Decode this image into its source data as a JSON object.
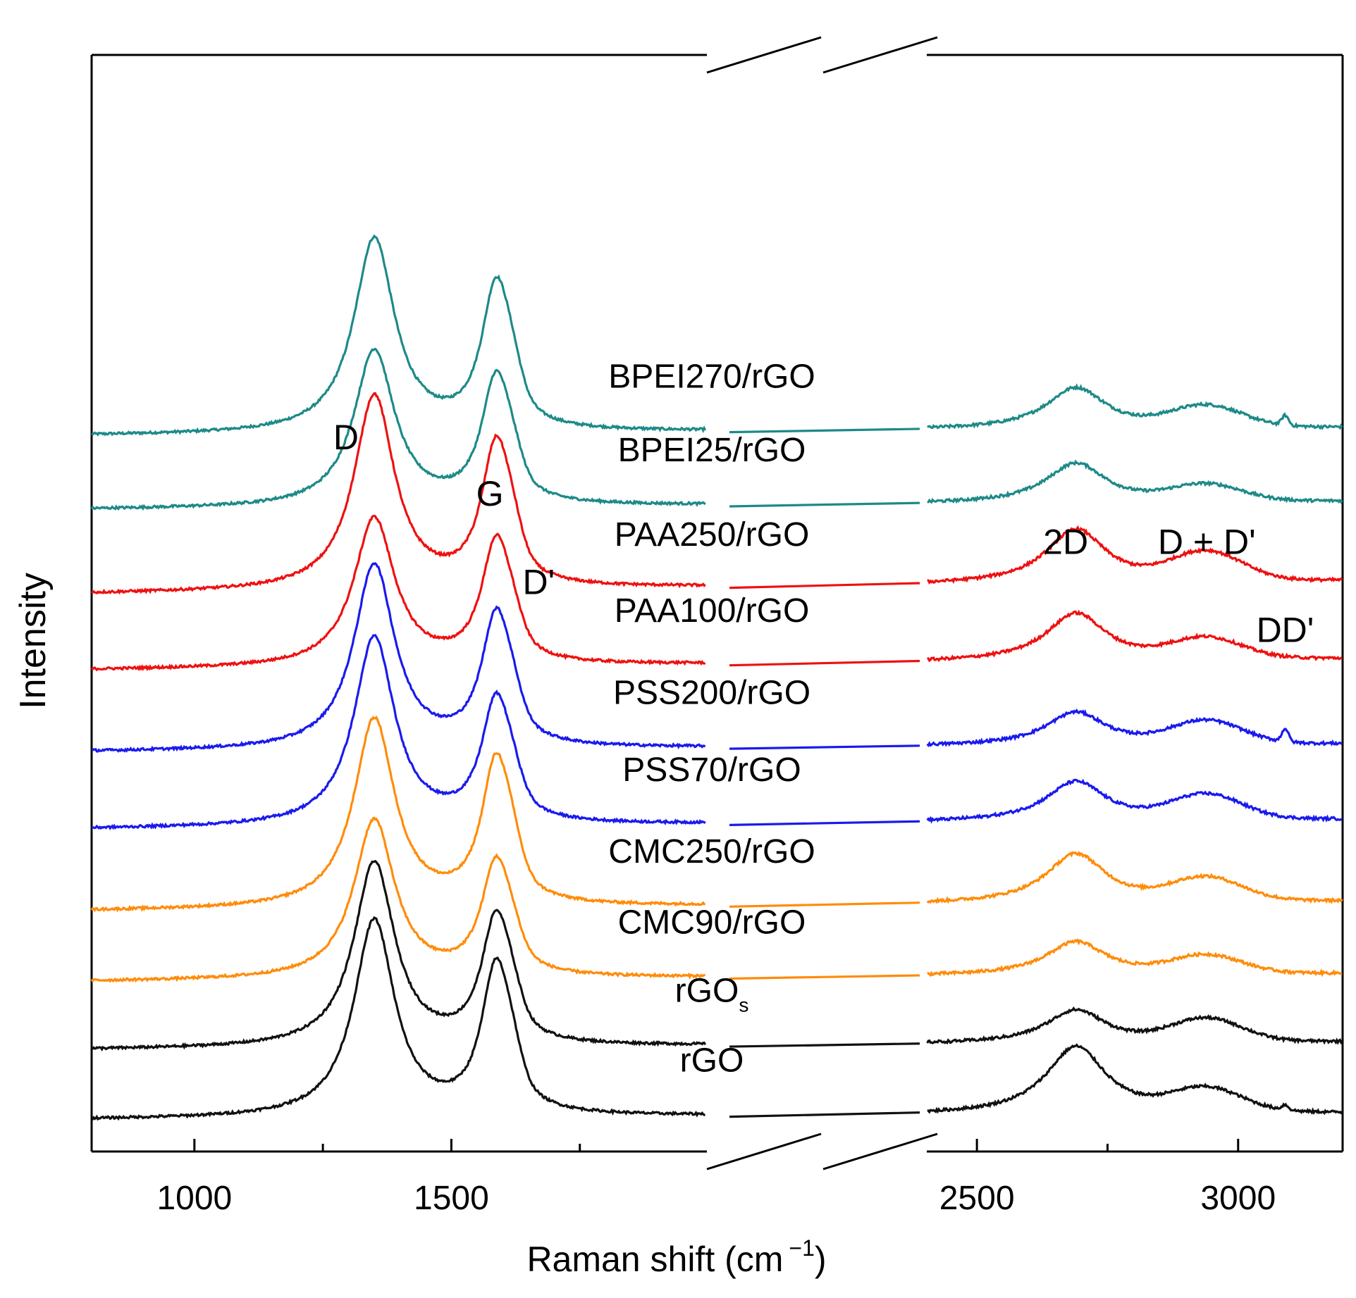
{
  "chart_data": {
    "type": "line",
    "title": "",
    "xlabel": "Raman shift (cm",
    "xlabel_superscript": "−1",
    "xlabel_close": ")",
    "ylabel": "Intensity",
    "xlim_left": [
      800,
      2000
    ],
    "xlim_right": [
      2400,
      3200
    ],
    "axis_break": true,
    "x_ticks": [
      1000,
      1500,
      2500,
      3000
    ],
    "x_tick_labels": [
      "1000",
      "1500",
      "2500",
      "3000"
    ],
    "x_minor_ticks": [
      1250,
      1750,
      2750
    ],
    "grid": false,
    "colors": {
      "teal": "#1d8a88",
      "red": "#ee1111",
      "blue": "#1a1aee",
      "orange": "#ff8c0a",
      "black": "#111111"
    },
    "peak_labels": [
      {
        "text": "D",
        "x": 1295,
        "level": 8.35
      },
      {
        "text": "G",
        "x": 1575,
        "level": 7.65
      },
      {
        "text": "D'",
        "x": 1670,
        "level": 6.55
      },
      {
        "text": "2D",
        "x": 2670,
        "level": 7.05
      },
      {
        "text": "D + D'",
        "x": 2940,
        "level": 7.05
      },
      {
        "text": "DD'",
        "x": 3090,
        "level": 5.95
      }
    ],
    "series": [
      {
        "name": "BPEI270/rGO",
        "color_key": "teal",
        "offset": 8.52,
        "slope": 0.05,
        "peaks": {
          "D": 2.42,
          "G": 1.71,
          "Dp": 0.72,
          "D2": 0.52,
          "DDp": 0.26,
          "DD": 0.12
        }
      },
      {
        "name": "BPEI25/rGO",
        "color_key": "teal",
        "offset": 7.6,
        "slope": 0.05,
        "peaks": {
          "D": 1.95,
          "G": 1.5,
          "Dp": 0.6,
          "D2": 0.5,
          "DDp": 0.2,
          "DD": 0.0
        }
      },
      {
        "name": "PAA250/rGO",
        "color_key": "red",
        "offset": 6.55,
        "slope": 0.08,
        "peaks": {
          "D": 2.42,
          "G": 1.68,
          "Dp": 0.7,
          "D2": 0.68,
          "DDp": 0.35,
          "DD": 0.0
        }
      },
      {
        "name": "PAA100/rGO",
        "color_key": "red",
        "offset": 5.6,
        "slope": 0.07,
        "peaks": {
          "D": 1.85,
          "G": 1.45,
          "Dp": 0.58,
          "D2": 0.6,
          "DDp": 0.25,
          "DD": 0.0
        }
      },
      {
        "name": "PSS200/rGO",
        "color_key": "blue",
        "offset": 4.58,
        "slope": 0.05,
        "peaks": {
          "D": 2.3,
          "G": 1.55,
          "Dp": 0.62,
          "D2": 0.42,
          "DDp": 0.28,
          "DD": 0.16
        }
      },
      {
        "name": "PSS70/rGO",
        "color_key": "blue",
        "offset": 3.62,
        "slope": 0.06,
        "peaks": {
          "D": 2.35,
          "G": 1.45,
          "Dp": 0.58,
          "D2": 0.5,
          "DDp": 0.3,
          "DD": 0.0
        }
      },
      {
        "name": "CMC250/rGO",
        "color_key": "orange",
        "offset": 2.6,
        "slope": 0.06,
        "peaks": {
          "D": 2.35,
          "G": 1.7,
          "Dp": 0.7,
          "D2": 0.62,
          "DDp": 0.28,
          "DD": 0.0
        }
      },
      {
        "name": "CMC90/rGO",
        "color_key": "orange",
        "offset": 1.72,
        "slope": 0.05,
        "peaks": {
          "D": 1.98,
          "G": 1.35,
          "Dp": 0.52,
          "D2": 0.42,
          "DDp": 0.22,
          "DD": 0.0
        }
      },
      {
        "name": "rGO",
        "subscript": "s",
        "color_key": "black",
        "offset": 0.87,
        "slope": 0.05,
        "peaks": {
          "D": 2.3,
          "G": 1.5,
          "Dp": 0.6,
          "D2": 0.42,
          "DDp": 0.28,
          "DD": 0.0
        }
      },
      {
        "name": "rGO",
        "color_key": "black",
        "offset": 0.0,
        "slope": 0.04,
        "peaks": {
          "D": 2.45,
          "G": 1.75,
          "Dp": 0.7,
          "D2": 0.85,
          "DDp": 0.28,
          "DD": 0.06
        }
      }
    ]
  }
}
